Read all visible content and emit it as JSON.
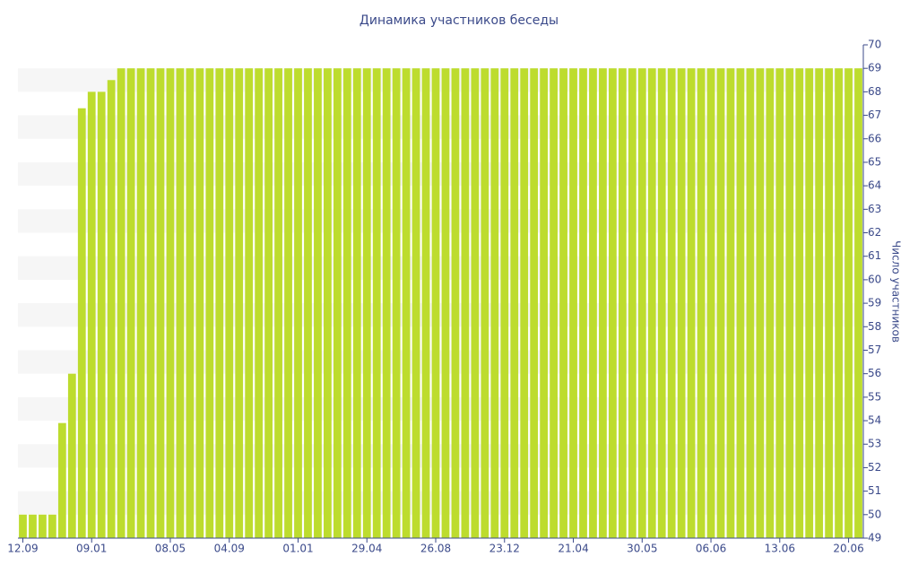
{
  "chart_data": {
    "type": "bar",
    "title": "Динамика участников беседы",
    "y_label": "Число участников",
    "categories": [
      "12.09",
      null,
      null,
      null,
      null,
      null,
      null,
      "09.01",
      null,
      null,
      null,
      null,
      null,
      null,
      null,
      "08.05",
      null,
      null,
      null,
      null,
      null,
      "04.09",
      null,
      null,
      null,
      null,
      null,
      null,
      "01.01",
      null,
      null,
      null,
      null,
      null,
      null,
      "29.04",
      null,
      null,
      null,
      null,
      null,
      null,
      "26.08",
      null,
      null,
      null,
      null,
      null,
      null,
      "23.12",
      null,
      null,
      null,
      null,
      null,
      null,
      "21.04",
      null,
      null,
      null,
      null,
      null,
      null,
      "30.05",
      null,
      null,
      null,
      null,
      null,
      null,
      "06.06",
      null,
      null,
      null,
      null,
      null,
      null,
      "13.06",
      null,
      null,
      null,
      null,
      null,
      null,
      "20.06",
      null
    ],
    "values": [
      50,
      50,
      50,
      50,
      53.9,
      56,
      67.3,
      68,
      68,
      68.5,
      69,
      69,
      69,
      69,
      69,
      69,
      69,
      69,
      69,
      69,
      69,
      69,
      69,
      69,
      69,
      69,
      69,
      69,
      69,
      69,
      69,
      69,
      69,
      69,
      69,
      69,
      69,
      69,
      69,
      69,
      69,
      69,
      69,
      69,
      69,
      69,
      69,
      69,
      69,
      69,
      69,
      69,
      69,
      69,
      69,
      69,
      69,
      69,
      69,
      69,
      69,
      69,
      69,
      69,
      69,
      69,
      69,
      69,
      69,
      69,
      69,
      69,
      69,
      69,
      69,
      69,
      69,
      69,
      69,
      69,
      69,
      69,
      69,
      69,
      69,
      69
    ],
    "color": "#bddc2e",
    "ylim": [
      49,
      70
    ],
    "yticks": [
      49,
      50,
      51,
      52,
      53,
      54,
      55,
      56,
      57,
      58,
      59,
      60,
      61,
      62,
      63,
      64,
      65,
      66,
      67,
      68,
      69,
      70
    ],
    "y_axis_side": "right",
    "grid": "stripes"
  }
}
